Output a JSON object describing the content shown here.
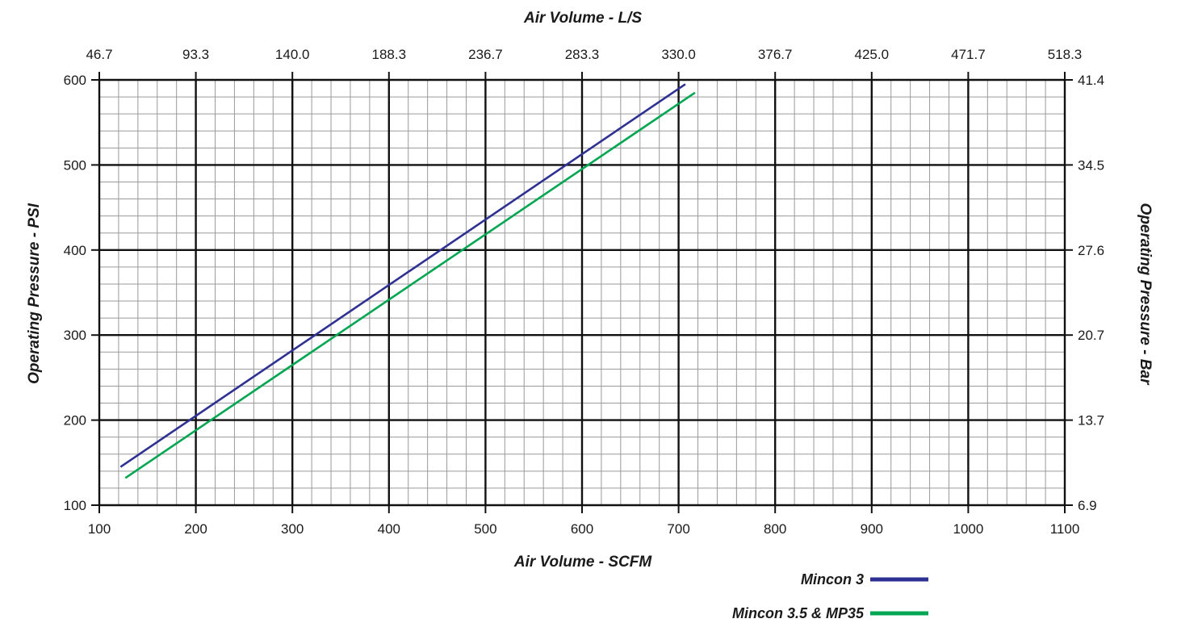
{
  "chart_data": {
    "type": "line",
    "xlabel": "Air Volume - SCFM",
    "x2label": "Air Volume - L/S",
    "ylabel": "Operating Pressure - PSI",
    "y2label": "Operating Pressure - Bar",
    "xlim": [
      100,
      1100
    ],
    "ylim": [
      100,
      600
    ],
    "x_ticks": [
      100,
      200,
      300,
      400,
      500,
      600,
      700,
      800,
      900,
      1000,
      1100
    ],
    "x2_tick_labels": [
      "46.7",
      "93.3",
      "140.0",
      "188.3",
      "236.7",
      "283.3",
      "330.0",
      "376.7",
      "425.0",
      "471.7",
      "518.3"
    ],
    "y_ticks": [
      100,
      200,
      300,
      400,
      500,
      600
    ],
    "y2_tick_labels": [
      "6.9",
      "13.7",
      "20.7",
      "27.6",
      "34.5",
      "41.4"
    ],
    "grid": true,
    "legend_position": "bottom-right",
    "series": [
      {
        "name": "Mincon 3",
        "color": "#2e3192",
        "x": [
          122,
          707
        ],
        "y": [
          145,
          595
        ]
      },
      {
        "name": "Mincon 3.5 & MP35",
        "color": "#00a651",
        "x": [
          127,
          717
        ],
        "y": [
          132,
          585
        ]
      }
    ]
  }
}
